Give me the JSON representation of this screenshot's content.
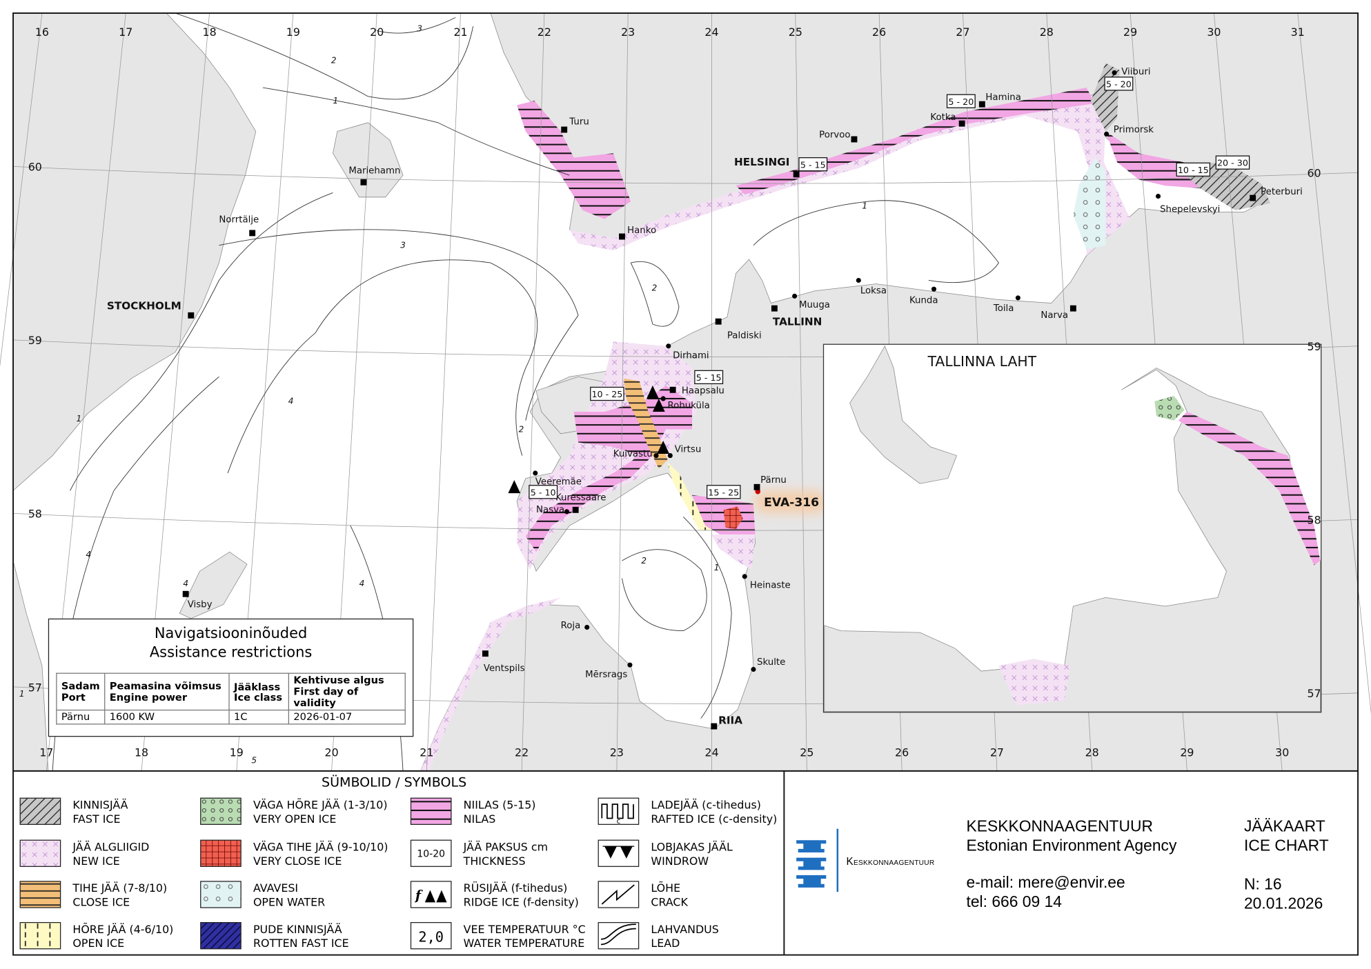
{
  "map": {
    "lon_top": [
      "16",
      "17",
      "18",
      "19",
      "20",
      "21",
      "22",
      "23",
      "24",
      "25",
      "26",
      "27",
      "28",
      "29",
      "30",
      "31"
    ],
    "lon_bottom": [
      "17",
      "18",
      "19",
      "20",
      "21",
      "22",
      "23",
      "24",
      "25",
      "26",
      "27",
      "28",
      "29",
      "30"
    ],
    "lat_left": [
      "60",
      "59",
      "58",
      "57"
    ],
    "lat_right": [
      "60",
      "59",
      "58",
      "57"
    ],
    "places": [
      {
        "name": "Turu"
      },
      {
        "name": "Hanko"
      },
      {
        "name": "Mariehamn"
      },
      {
        "name": "Norrtälje"
      },
      {
        "name": "STOCKHOLM"
      },
      {
        "name": "Visby"
      },
      {
        "name": "Porvoo"
      },
      {
        "name": "HELSINGI"
      },
      {
        "name": "Kotka"
      },
      {
        "name": "Hamina"
      },
      {
        "name": "Viiburi"
      },
      {
        "name": "Primorsk"
      },
      {
        "name": "Shepelevskyi"
      },
      {
        "name": "Peterburi"
      },
      {
        "name": "Narva"
      },
      {
        "name": "Toila"
      },
      {
        "name": "Kunda"
      },
      {
        "name": "Loksa"
      },
      {
        "name": "Muuga"
      },
      {
        "name": "TALLINN"
      },
      {
        "name": "Paldiski"
      },
      {
        "name": "Dirhami"
      },
      {
        "name": "Haapsalu"
      },
      {
        "name": "Rohuküla"
      },
      {
        "name": "Virtsu"
      },
      {
        "name": "Kuivastu"
      },
      {
        "name": "Veeremäe"
      },
      {
        "name": "Kuressaare"
      },
      {
        "name": "Nasva"
      },
      {
        "name": "Pärnu"
      },
      {
        "name": "Heinaste"
      },
      {
        "name": "Roja"
      },
      {
        "name": "Ventspils"
      },
      {
        "name": "Mērsrags"
      },
      {
        "name": "Skulte"
      },
      {
        "name": "RIIA"
      }
    ],
    "thickness": [
      "5 - 15",
      "5 - 20",
      "5 - 20",
      "10 - 15",
      "20 - 30",
      "5 - 15",
      "10 - 25",
      "5 - 10",
      "15 - 25"
    ],
    "contour_labels": [
      "3",
      "2",
      "1",
      "3",
      "4",
      "2",
      "2",
      "1",
      "4",
      "4",
      "4",
      "2",
      "1",
      "1",
      "5",
      "1"
    ],
    "highlight": "EVA-316"
  },
  "inset": {
    "title": "TALLINNA LAHT"
  },
  "restrictions": {
    "title_et": "Navigatsiooninõuded",
    "title_en": "Assistance restrictions",
    "headers": [
      {
        "et": "Sadam",
        "en": "Port"
      },
      {
        "et": "Peamasina võimsus",
        "en": "Engine power"
      },
      {
        "et": "Jääklass",
        "en": "Ice class"
      },
      {
        "et": "Kehtivuse algus",
        "en": "First day of validity"
      }
    ],
    "rows": [
      [
        "Pärnu",
        "1600 KW",
        "1C",
        "2026-01-07"
      ]
    ]
  },
  "legend": {
    "title": "SÜMBOLID / SYMBOLS",
    "items": [
      {
        "et": "KINNISJÄÄ",
        "en": "FAST ICE",
        "pattern": "fast"
      },
      {
        "et": "JÄÄ ALGLIIGID",
        "en": "NEW ICE",
        "pattern": "newice"
      },
      {
        "et": "TIHE JÄÄ (7-8/10)",
        "en": "CLOSE ICE",
        "pattern": "close"
      },
      {
        "et": "HÕRE JÄÄ (4-6/10)",
        "en": "OPEN ICE",
        "pattern": "openice"
      },
      {
        "et": "VÄGA HÕRE JÄÄ (1-3/10)",
        "en": "VERY OPEN ICE",
        "pattern": "veryopen"
      },
      {
        "et": "VÄGA TIHE JÄÄ (9-10/10)",
        "en": "VERY CLOSE ICE",
        "pattern": "veryclose"
      },
      {
        "et": "AVAVESI",
        "en": "OPEN WATER",
        "pattern": "openwater"
      },
      {
        "et": "PUDE KINNISJÄÄ",
        "en": "ROTTEN FAST ICE",
        "pattern": "rotten"
      },
      {
        "et": "NIILAS (5-15)",
        "en": "NILAS",
        "pattern": "nilas"
      },
      {
        "et": "JÄÄ PAKSUS cm",
        "en": "THICKNESS",
        "symbol": "10-20"
      },
      {
        "et": "RÜSIJÄÄ (f-tihedus)",
        "en": "RIDGE ICE (f-density)",
        "symbol": "f"
      },
      {
        "et": "VEE TEMPERATUUR °C",
        "en": "WATER TEMPERATURE",
        "symbol": "2,0"
      },
      {
        "et": "LADEJÄÄ (c-tihedus)",
        "en": "RAFTED ICE (c-density)",
        "symbol": "c"
      },
      {
        "et": "LOBJAKAS JÄÄL",
        "en": "WINDROW"
      },
      {
        "et": "LÕHE",
        "en": "CRACK"
      },
      {
        "et": "LAHVANDUS",
        "en": "LEAD"
      }
    ]
  },
  "footer": {
    "logo_text": "Keskkonnaagentuur",
    "agency_et": "KESKKONNAAGENTUUR",
    "agency_en": "Estonian Environment Agency",
    "email": "e-mail: mere@envir.ee",
    "tel": "tel: 666 09 14",
    "chart_et": "JÄÄKAART",
    "chart_en": "ICE CHART",
    "number": "N: 16",
    "date": "20.01.2026"
  },
  "colors": {
    "land": "#e6e6e6",
    "sea": "#ffffff",
    "nilas": "#f2a6e4",
    "new_ice": "#f4e2f4",
    "close_ice": "#f3bf78",
    "open_ice": "#fffac4",
    "very_open_ice": "#b9dcb2",
    "very_close_ice": "#f06050",
    "open_water": "#e2f3f4",
    "rotten_fast_ice": "#1c1c70",
    "logo_blue": "#1f6fc0",
    "highlight_glow": "#f7c9a0"
  }
}
